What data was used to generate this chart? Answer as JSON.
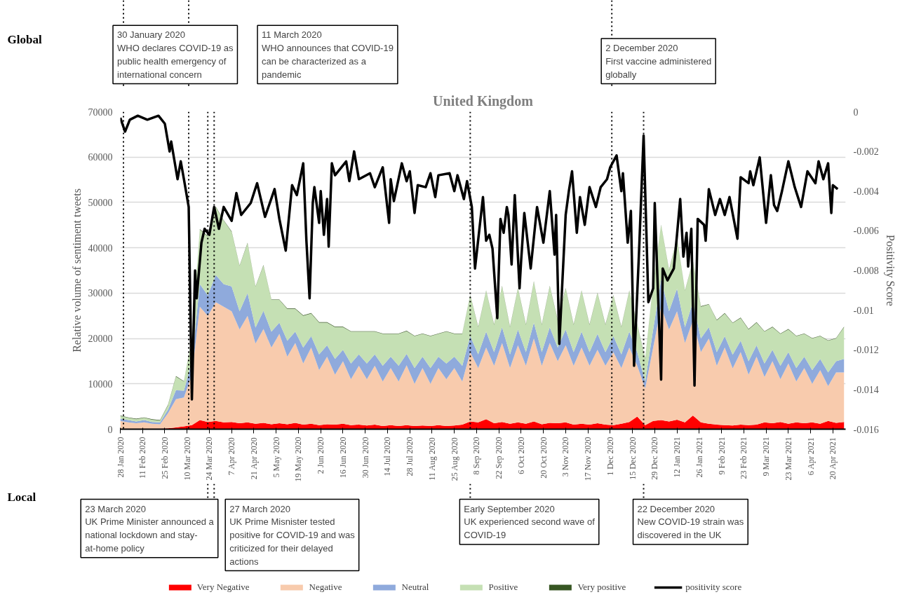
{
  "chart_data": {
    "type": "area",
    "title": "United Kingdom",
    "ylabel": "Relative volume of sentiment tweets",
    "y2label": "Positivity Score",
    "stacked": true,
    "grid": "y",
    "legend": "bottom",
    "xlim": [
      "2020-01-28",
      "2021-04-28"
    ],
    "xticks": [
      {
        "value": "2020-01-28",
        "label": "28 Jan 2020"
      },
      {
        "value": "2020-02-11",
        "label": "11 Feb 2020"
      },
      {
        "value": "2020-02-25",
        "label": "25 Feb 2020"
      },
      {
        "value": "2020-03-10",
        "label": "10 Mar 2020"
      },
      {
        "value": "2020-03-24",
        "label": "24 Mar 2020"
      },
      {
        "value": "2020-04-07",
        "label": "7 Apr 2020"
      },
      {
        "value": "2020-04-21",
        "label": "21 Apr 2020"
      },
      {
        "value": "2020-05-05",
        "label": "5 May 2020"
      },
      {
        "value": "2020-05-19",
        "label": "19 May 2020"
      },
      {
        "value": "2020-06-02",
        "label": "2 Jun 2020"
      },
      {
        "value": "2020-06-16",
        "label": "16 Jun 2020"
      },
      {
        "value": "2020-06-30",
        "label": "30 Jun 2020"
      },
      {
        "value": "2020-07-14",
        "label": "14 Jul 2020"
      },
      {
        "value": "2020-07-28",
        "label": "28 Jul 2020"
      },
      {
        "value": "2020-08-11",
        "label": "11 Aug 2020"
      },
      {
        "value": "2020-08-25",
        "label": "25 Aug 2020"
      },
      {
        "value": "2020-09-08",
        "label": "8 Sep 2020"
      },
      {
        "value": "2020-09-22",
        "label": "22 Sep 2020"
      },
      {
        "value": "2020-10-06",
        "label": "6 Oct 2020"
      },
      {
        "value": "2020-10-20",
        "label": "20 Oct 2020"
      },
      {
        "value": "2020-11-03",
        "label": "3 Nov 2020"
      },
      {
        "value": "2020-11-17",
        "label": "17 Nov 2020"
      },
      {
        "value": "2020-12-01",
        "label": "1 Dec 2020"
      },
      {
        "value": "2020-12-15",
        "label": "15 Dec 2020"
      },
      {
        "value": "2020-12-29",
        "label": "29 Dec 2020"
      },
      {
        "value": "2021-01-12",
        "label": "12 Jan 2021"
      },
      {
        "value": "2021-01-26",
        "label": "26 Jan 2021"
      },
      {
        "value": "2021-02-09",
        "label": "9 Feb 2021"
      },
      {
        "value": "2021-02-23",
        "label": "23 Feb 2021"
      },
      {
        "value": "2021-03-09",
        "label": "9 Mar 2021"
      },
      {
        "value": "2021-03-23",
        "label": "23 Mar 2021"
      },
      {
        "value": "2021-04-06",
        "label": "6 Apr 2021"
      },
      {
        "value": "2021-04-20",
        "label": "20 Apr 2021"
      }
    ],
    "ylim": [
      0,
      70000
    ],
    "yticks": [
      0,
      10000,
      20000,
      30000,
      40000,
      50000,
      60000,
      70000
    ],
    "y2lim": [
      -0.016,
      0
    ],
    "y2ticks": [
      0,
      -0.002,
      -0.004,
      -0.006,
      -0.008,
      -0.01,
      -0.012,
      -0.014,
      -0.016
    ],
    "x": [
      "2020-01-28",
      "2020-02-02",
      "2020-02-07",
      "2020-02-12",
      "2020-02-17",
      "2020-02-22",
      "2020-02-27",
      "2020-03-03",
      "2020-03-08",
      "2020-03-13",
      "2020-03-18",
      "2020-03-23",
      "2020-03-28",
      "2020-04-02",
      "2020-04-07",
      "2020-04-12",
      "2020-04-17",
      "2020-04-22",
      "2020-04-27",
      "2020-05-02",
      "2020-05-07",
      "2020-05-12",
      "2020-05-17",
      "2020-05-22",
      "2020-05-27",
      "2020-06-01",
      "2020-06-06",
      "2020-06-11",
      "2020-06-16",
      "2020-06-21",
      "2020-06-26",
      "2020-07-01",
      "2020-07-06",
      "2020-07-11",
      "2020-07-16",
      "2020-07-21",
      "2020-07-26",
      "2020-07-31",
      "2020-08-05",
      "2020-08-10",
      "2020-08-15",
      "2020-08-20",
      "2020-08-25",
      "2020-08-30",
      "2020-09-04",
      "2020-09-09",
      "2020-09-14",
      "2020-09-19",
      "2020-09-24",
      "2020-09-29",
      "2020-10-04",
      "2020-10-09",
      "2020-10-14",
      "2020-10-19",
      "2020-10-24",
      "2020-10-29",
      "2020-11-03",
      "2020-11-08",
      "2020-11-13",
      "2020-11-18",
      "2020-11-23",
      "2020-11-28",
      "2020-12-03",
      "2020-12-08",
      "2020-12-13",
      "2020-12-18",
      "2020-12-23",
      "2020-12-28",
      "2021-01-02",
      "2021-01-07",
      "2021-01-12",
      "2021-01-17",
      "2021-01-22",
      "2021-01-27",
      "2021-02-01",
      "2021-02-06",
      "2021-02-11",
      "2021-02-16",
      "2021-02-21",
      "2021-02-26",
      "2021-03-03",
      "2021-03-08",
      "2021-03-13",
      "2021-03-18",
      "2021-03-23",
      "2021-03-28",
      "2021-04-02",
      "2021-04-07",
      "2021-04-12",
      "2021-04-17",
      "2021-04-22",
      "2021-04-27"
    ],
    "series": [
      {
        "name": "Very Negative",
        "color": "#ff0000",
        "values": [
          100,
          100,
          100,
          100,
          100,
          100,
          200,
          400,
          600,
          900,
          2000,
          1600,
          1800,
          1500,
          1600,
          1300,
          1500,
          1200,
          1400,
          1100,
          1300,
          1100,
          1400,
          1000,
          1200,
          900,
          1100,
          1000,
          1200,
          900,
          1000,
          800,
          1000,
          700,
          900,
          700,
          900,
          700,
          800,
          700,
          900,
          700,
          800,
          1000,
          1700,
          1500,
          2200,
          1300,
          1600,
          1200,
          1500,
          1200,
          1700,
          1100,
          1400,
          1300,
          1500,
          1000,
          1200,
          1000,
          1300,
          1000,
          900,
          1200,
          1600,
          2800,
          900,
          1800,
          2000,
          1700,
          2100,
          1500,
          3000,
          1500,
          1200,
          1000,
          900,
          800,
          1000,
          900,
          1000,
          1500,
          1300,
          1600,
          1200,
          1500,
          1300,
          1500,
          1200,
          1800,
          1400,
          1600
        ]
      },
      {
        "name": "Negative",
        "color": "#f8cbad",
        "values": [
          1700,
          1400,
          1200,
          1400,
          1100,
          1000,
          3300,
          6200,
          6400,
          11100,
          25000,
          23400,
          26200,
          25500,
          24400,
          20700,
          23500,
          17700,
          20700,
          16900,
          19700,
          14900,
          17600,
          13500,
          16800,
          12100,
          14900,
          11000,
          13800,
          10100,
          13000,
          10200,
          13000,
          9800,
          12600,
          9800,
          13200,
          9300,
          12700,
          9300,
          12600,
          10300,
          12700,
          9500,
          15300,
          12000,
          15800,
          12700,
          17400,
          12300,
          17000,
          12800,
          18300,
          12900,
          17600,
          13700,
          17000,
          13000,
          16800,
          13000,
          16200,
          13000,
          16100,
          12300,
          16400,
          11200,
          8100,
          16200,
          25000,
          20300,
          23900,
          17500,
          21000,
          15500,
          18800,
          13000,
          17100,
          12600,
          16000,
          11100,
          15000,
          10000,
          13700,
          9400,
          13300,
          9000,
          12200,
          8500,
          11800,
          7700,
          11100,
          10900
        ]
      },
      {
        "name": "Neutral",
        "color": "#8faadc",
        "values": [
          500,
          500,
          400,
          500,
          400,
          400,
          800,
          2000,
          1500,
          3000,
          5000,
          4500,
          6000,
          5000,
          5500,
          4000,
          5000,
          3500,
          4000,
          3500,
          2500,
          3500,
          2500,
          3500,
          2500,
          3500,
          2500,
          3500,
          2500,
          3500,
          2500,
          3500,
          2500,
          3500,
          2500,
          3500,
          2500,
          3500,
          2500,
          3500,
          2500,
          3500,
          2500,
          3500,
          3500,
          3000,
          3500,
          3000,
          3500,
          3000,
          3500,
          3000,
          3500,
          3000,
          3500,
          3000,
          3500,
          3000,
          3500,
          3000,
          3500,
          3000,
          3500,
          3000,
          3500,
          3000,
          1500,
          4000,
          6000,
          4000,
          5000,
          3500,
          4000,
          3000,
          2500,
          3000,
          2500,
          3000,
          2500,
          3000,
          2500,
          3000,
          2500,
          3000,
          2500,
          3000,
          2500,
          3000,
          2500,
          3000,
          2500,
          3000
        ]
      },
      {
        "name": "Positive",
        "color": "#c5e0b4",
        "values": [
          600,
          500,
          500,
          500,
          500,
          400,
          1000,
          3000,
          2000,
          5000,
          12000,
          13000,
          15000,
          14000,
          12000,
          10000,
          11000,
          9000,
          10000,
          7000,
          5000,
          7000,
          5000,
          7000,
          5000,
          7000,
          5000,
          7000,
          5000,
          7000,
          5000,
          7000,
          5000,
          7000,
          5000,
          7000,
          5000,
          7000,
          5000,
          7000,
          5000,
          7000,
          5000,
          7000,
          9000,
          6000,
          9000,
          6000,
          9000,
          6000,
          9000,
          6000,
          9000,
          6000,
          9000,
          6000,
          9000,
          6000,
          9000,
          6000,
          9000,
          6000,
          9000,
          6000,
          9000,
          6000,
          5000,
          10000,
          12000,
          9000,
          11000,
          8000,
          9000,
          7000,
          5000,
          7000,
          5000,
          7000,
          5000,
          7000,
          5000,
          7000,
          5000,
          7000,
          5000,
          7000,
          5000,
          7000,
          5000,
          7000,
          5000,
          7000
        ]
      },
      {
        "name": "Very positive",
        "color": "#375623",
        "values": [
          100,
          100,
          100,
          100,
          100,
          100,
          100,
          100,
          100,
          100,
          100,
          100,
          100,
          100,
          100,
          100,
          100,
          100,
          100,
          100,
          100,
          100,
          100,
          100,
          100,
          100,
          100,
          100,
          100,
          100,
          100,
          100,
          100,
          100,
          100,
          100,
          100,
          100,
          100,
          100,
          100,
          100,
          100,
          100,
          100,
          100,
          100,
          100,
          100,
          100,
          100,
          100,
          100,
          100,
          100,
          100,
          100,
          100,
          100,
          100,
          100,
          100,
          100,
          100,
          100,
          100,
          100,
          100,
          100,
          100,
          100,
          100,
          100,
          100,
          100,
          100,
          100,
          100,
          100,
          100,
          100,
          100,
          100,
          100,
          100,
          100,
          100,
          100,
          100,
          100,
          100,
          100
        ]
      },
      {
        "name": "positivity score",
        "type": "line",
        "axis": "y2",
        "color": "#000000",
        "x": [
          "2020-01-28",
          "2020-01-31",
          "2020-02-03",
          "2020-02-08",
          "2020-02-14",
          "2020-02-21",
          "2020-02-25",
          "2020-02-28",
          "2020-02-29",
          "2020-03-04",
          "2020-03-06",
          "2020-03-08",
          "2020-03-11",
          "2020-03-13",
          "2020-03-15",
          "2020-03-16",
          "2020-03-19",
          "2020-03-21",
          "2020-03-24",
          "2020-03-27",
          "2020-03-30",
          "2020-04-02",
          "2020-04-07",
          "2020-04-10",
          "2020-04-13",
          "2020-04-19",
          "2020-04-23",
          "2020-04-28",
          "2020-05-04",
          "2020-05-07",
          "2020-05-11",
          "2020-05-15",
          "2020-05-18",
          "2020-05-22",
          "2020-05-24",
          "2020-05-26",
          "2020-05-28",
          "2020-05-29",
          "2020-06-01",
          "2020-06-02",
          "2020-06-04",
          "2020-06-06",
          "2020-06-07",
          "2020-06-09",
          "2020-06-11",
          "2020-06-18",
          "2020-06-20",
          "2020-06-23",
          "2020-06-26",
          "2020-07-03",
          "2020-07-06",
          "2020-07-11",
          "2020-07-15",
          "2020-07-16",
          "2020-07-18",
          "2020-07-23",
          "2020-07-26",
          "2020-07-28",
          "2020-07-31",
          "2020-08-02",
          "2020-08-07",
          "2020-08-10",
          "2020-08-13",
          "2020-08-15",
          "2020-08-22",
          "2020-08-25",
          "2020-08-27",
          "2020-08-31",
          "2020-09-02",
          "2020-09-05",
          "2020-09-07",
          "2020-09-12",
          "2020-09-14",
          "2020-09-16",
          "2020-09-18",
          "2020-09-21",
          "2020-09-23",
          "2020-09-25",
          "2020-09-27",
          "2020-09-28",
          "2020-09-30",
          "2020-10-02",
          "2020-10-05",
          "2020-10-06",
          "2020-10-08",
          "2020-10-12",
          "2020-10-16",
          "2020-10-20",
          "2020-10-24",
          "2020-10-27",
          "2020-10-28",
          "2020-10-30",
          "2020-11-03",
          "2020-11-05",
          "2020-11-07",
          "2020-11-10",
          "2020-11-12",
          "2020-11-15",
          "2020-11-18",
          "2020-11-22",
          "2020-11-25",
          "2020-11-29",
          "2020-12-01",
          "2020-12-05",
          "2020-12-08",
          "2020-12-09",
          "2020-12-12",
          "2020-12-14",
          "2020-12-16",
          "2020-12-19",
          "2020-12-22",
          "2020-12-25",
          "2020-12-28",
          "2020-12-29",
          "2021-01-02",
          "2021-01-03",
          "2021-01-06",
          "2021-01-10",
          "2021-01-12",
          "2021-01-14",
          "2021-01-16",
          "2021-01-18",
          "2021-01-19",
          "2021-01-21",
          "2021-01-23",
          "2021-01-25",
          "2021-01-29",
          "2021-01-30",
          "2021-02-01",
          "2021-02-05",
          "2021-02-08",
          "2021-02-11",
          "2021-02-14",
          "2021-02-19",
          "2021-02-21",
          "2021-02-26",
          "2021-02-27",
          "2021-03-01",
          "2021-03-05",
          "2021-03-09",
          "2021-03-12",
          "2021-03-14",
          "2021-03-16",
          "2021-03-19",
          "2021-03-23",
          "2021-03-27",
          "2021-03-31",
          "2021-04-04",
          "2021-04-09",
          "2021-04-11",
          "2021-04-14",
          "2021-04-17",
          "2021-04-19",
          "2021-04-20",
          "2021-04-23"
        ],
        "values": [
          -0.0003,
          -0.001,
          -0.0004,
          -0.0002,
          -0.0004,
          -0.0002,
          -0.0006,
          -0.002,
          -0.0015,
          -0.0034,
          -0.0025,
          -0.0034,
          -0.0048,
          -0.0145,
          -0.008,
          -0.0094,
          -0.0066,
          -0.0059,
          -0.0062,
          -0.0048,
          -0.0059,
          -0.0048,
          -0.0055,
          -0.0041,
          -0.0052,
          -0.0046,
          -0.0036,
          -0.0053,
          -0.0039,
          -0.0054,
          -0.007,
          -0.0037,
          -0.0042,
          -0.0026,
          -0.0065,
          -0.0094,
          -0.0046,
          -0.0038,
          -0.0056,
          -0.004,
          -0.0062,
          -0.0044,
          -0.0068,
          -0.0026,
          -0.0032,
          -0.0025,
          -0.0035,
          -0.002,
          -0.0034,
          -0.0031,
          -0.0038,
          -0.0028,
          -0.0056,
          -0.0034,
          -0.0045,
          -0.0026,
          -0.0035,
          -0.003,
          -0.0051,
          -0.0037,
          -0.0038,
          -0.0031,
          -0.0043,
          -0.0032,
          -0.0031,
          -0.004,
          -0.0032,
          -0.0044,
          -0.0035,
          -0.0048,
          -0.0079,
          -0.0043,
          -0.0065,
          -0.0062,
          -0.0069,
          -0.0104,
          -0.0054,
          -0.0061,
          -0.0048,
          -0.0052,
          -0.0077,
          -0.0042,
          -0.0089,
          -0.0075,
          -0.0051,
          -0.0079,
          -0.0048,
          -0.0066,
          -0.004,
          -0.0072,
          -0.0052,
          -0.0117,
          -0.0052,
          -0.004,
          -0.003,
          -0.0061,
          -0.0043,
          -0.0057,
          -0.0038,
          -0.0048,
          -0.0038,
          -0.0034,
          -0.0028,
          -0.0022,
          -0.004,
          -0.0031,
          -0.0066,
          -0.005,
          -0.0128,
          -0.0073,
          -0.0012,
          -0.0096,
          -0.0089,
          -0.0046,
          -0.0135,
          -0.0079,
          -0.0085,
          -0.0079,
          -0.0062,
          -0.0044,
          -0.0073,
          -0.0061,
          -0.0078,
          -0.0059,
          -0.0138,
          -0.0054,
          -0.0057,
          -0.0065,
          -0.0039,
          -0.0052,
          -0.0044,
          -0.0052,
          -0.0043,
          -0.0064,
          -0.0033,
          -0.0036,
          -0.003,
          -0.0037,
          -0.0023,
          -0.0056,
          -0.0032,
          -0.0047,
          -0.005,
          -0.004,
          -0.0025,
          -0.0038,
          -0.0048,
          -0.003,
          -0.0036,
          -0.0025,
          -0.0034,
          -0.0026,
          -0.0051,
          -0.0037,
          -0.0039
        ]
      }
    ],
    "ref_lines": [
      {
        "axis": "x",
        "value": "2020-01-30",
        "color": "#000000",
        "line_style": "dotted"
      },
      {
        "axis": "x",
        "value": "2020-03-11",
        "color": "#000000",
        "line_style": "dotted"
      },
      {
        "axis": "x",
        "value": "2020-12-02",
        "color": "#000000",
        "line_style": "dotted"
      },
      {
        "axis": "x",
        "value": "2020-03-23",
        "color": "#000000",
        "line_style": "dotted"
      },
      {
        "axis": "x",
        "value": "2020-03-27",
        "color": "#000000",
        "line_style": "dotted"
      },
      {
        "axis": "x",
        "value": "2020-09-04",
        "color": "#000000",
        "line_style": "dotted"
      },
      {
        "axis": "x",
        "value": "2020-12-22",
        "color": "#000000",
        "line_style": "dotted"
      }
    ],
    "annotations": [
      "30 January 2020\nWHO declares COVID-19 as public health emergency of international concern",
      "11 March 2020\nWHO announces that COVID-19 can be characterized as a pandemic",
      "2 December 2020\nFirst vaccine administered globally",
      "23 March 2020\nUK Prime Minister announced a national lockdown and stay-at-home policy",
      "27 March 2020\nUK Prime Misnister tested positive for COVID-19 and was criticized for their delayed actions",
      "Early September 2020\nUK experienced second wave of COVID-19",
      "22 December 2020\nNew COVID-19 strain was discovered in the UK",
      "Global",
      "Local"
    ]
  }
}
